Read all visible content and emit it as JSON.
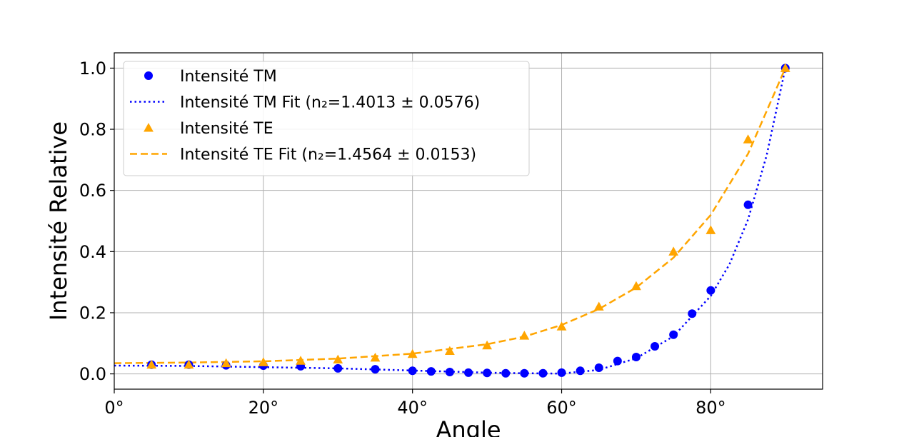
{
  "chart_data": {
    "type": "scatter",
    "xlabel": "Angle",
    "ylabel": "Intensité Relative",
    "xlim": [
      0,
      95
    ],
    "ylim": [
      -0.05,
      1.05
    ],
    "grid": true,
    "legend_position": "top-left",
    "x_ticks": [
      0,
      20,
      40,
      60,
      80
    ],
    "x_tick_labels": [
      "0°",
      "20°",
      "40°",
      "60°",
      "80°"
    ],
    "y_ticks": [
      0.0,
      0.2,
      0.4,
      0.6,
      0.8,
      1.0
    ],
    "y_tick_labels": [
      "0.0",
      "0.2",
      "0.4",
      "0.6",
      "0.8",
      "1.0"
    ],
    "series": [
      {
        "name": "Intensité TM",
        "kind": "points",
        "marker": "circle",
        "color": "#0000ff",
        "x": [
          5,
          10,
          15,
          20,
          25,
          30,
          35,
          40,
          42.5,
          45,
          47.5,
          50,
          52.5,
          55,
          57.5,
          60,
          62.5,
          65,
          67.5,
          70,
          72.5,
          75,
          77.5,
          80,
          85,
          90
        ],
        "y": [
          0.03,
          0.03,
          0.028,
          0.027,
          0.025,
          0.018,
          0.015,
          0.01,
          0.008,
          0.006,
          0.004,
          0.003,
          0.002,
          0.002,
          0.002,
          0.004,
          0.01,
          0.02,
          0.042,
          0.055,
          0.09,
          0.128,
          0.197,
          0.273,
          0.553,
          1.0
        ]
      },
      {
        "name": "Intensité TM Fit (n₂=1.4013 ± 0.0576)",
        "kind": "line",
        "style": "dotted",
        "color": "#0000ff",
        "x": [
          0,
          10,
          20,
          30,
          40,
          50,
          55,
          60,
          65,
          70,
          75,
          80,
          82.5,
          85,
          87.5,
          90
        ],
        "y": [
          0.027,
          0.026,
          0.022,
          0.018,
          0.011,
          0.004,
          0.002,
          0.001,
          0.013,
          0.051,
          0.123,
          0.255,
          0.358,
          0.505,
          0.715,
          1.0
        ]
      },
      {
        "name": "Intensité TE",
        "kind": "points",
        "marker": "triangle",
        "color": "#ffa500",
        "x": [
          5,
          10,
          15,
          20,
          25,
          30,
          35,
          40,
          45,
          50,
          55,
          60,
          65,
          70,
          75,
          80,
          85,
          90
        ],
        "y": [
          0.03,
          0.03,
          0.035,
          0.038,
          0.043,
          0.047,
          0.053,
          0.065,
          0.075,
          0.093,
          0.125,
          0.155,
          0.22,
          0.287,
          0.4,
          0.47,
          0.767,
          1.0
        ]
      },
      {
        "name": "Intensité TE Fit (n₂=1.4564 ± 0.0153)",
        "kind": "line",
        "style": "dashed",
        "color": "#ffa500",
        "x": [
          0,
          10,
          20,
          30,
          40,
          50,
          55,
          60,
          65,
          70,
          75,
          80,
          85,
          90
        ],
        "y": [
          0.035,
          0.037,
          0.041,
          0.05,
          0.066,
          0.097,
          0.122,
          0.16,
          0.212,
          0.282,
          0.38,
          0.52,
          0.72,
          1.0
        ]
      }
    ]
  }
}
